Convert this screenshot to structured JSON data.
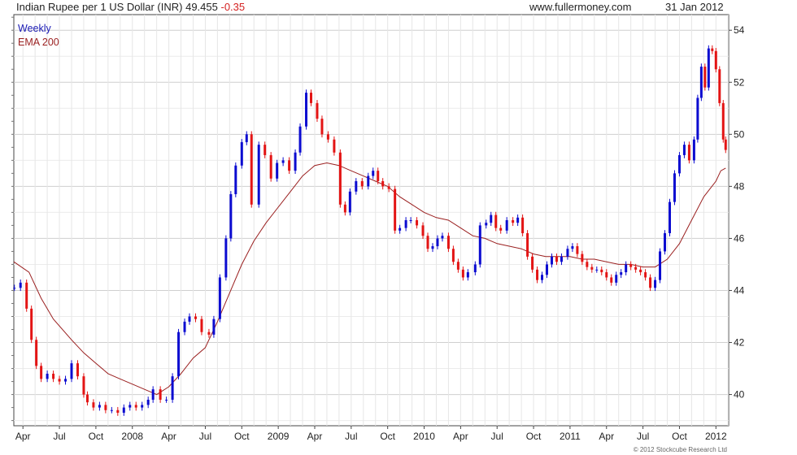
{
  "header": {
    "title": "Indian Rupee per 1 US Dollar (INR) 49.455",
    "change": "-0.35",
    "website": "www.fullermoney.com",
    "date": "31 Jan 2012"
  },
  "credit": "© 2012 Stockcube Research Ltd",
  "chart_data": {
    "type": "line",
    "legend": [
      {
        "label": "Weekly",
        "color": "#1a1ab4"
      },
      {
        "label": "EMA 200",
        "color": "#9a1f1f"
      }
    ],
    "colors": {
      "up": "#0b0bd0",
      "down": "#e31414",
      "ema": "#9a1f1f",
      "grid": "#dcdcdc",
      "frame": "#444444"
    },
    "ylim": [
      38.8,
      54.6
    ],
    "y_ticks": [
      40,
      42,
      44,
      46,
      48,
      50,
      52,
      54
    ],
    "x_ticks": [
      {
        "t": 0,
        "label": "Apr"
      },
      {
        "t": 3,
        "label": "Jul"
      },
      {
        "t": 6,
        "label": "Oct"
      },
      {
        "t": 9,
        "label": "2008"
      },
      {
        "t": 12,
        "label": "Apr"
      },
      {
        "t": 15,
        "label": "Jul"
      },
      {
        "t": 18,
        "label": "Oct"
      },
      {
        "t": 21,
        "label": "2009"
      },
      {
        "t": 24,
        "label": "Apr"
      },
      {
        "t": 27,
        "label": "Jul"
      },
      {
        "t": 30,
        "label": "Oct"
      },
      {
        "t": 33,
        "label": "2010"
      },
      {
        "t": 36,
        "label": "Apr"
      },
      {
        "t": 39,
        "label": "Jul"
      },
      {
        "t": 42,
        "label": "Oct"
      },
      {
        "t": 45,
        "label": "2011"
      },
      {
        "t": 48,
        "label": "Apr"
      },
      {
        "t": 51,
        "label": "Jul"
      },
      {
        "t": 54,
        "label": "Oct"
      },
      {
        "t": 57,
        "label": "2012"
      }
    ],
    "x_range": [
      -0.75,
      58.05
    ],
    "weekly_close": [
      [
        -0.7,
        44.1
      ],
      [
        -0.2,
        44.3
      ],
      [
        0.3,
        43.3
      ],
      [
        0.7,
        42.1
      ],
      [
        1.1,
        41.1
      ],
      [
        1.5,
        40.6
      ],
      [
        2.0,
        40.8
      ],
      [
        2.5,
        40.6
      ],
      [
        3.0,
        40.5
      ],
      [
        3.5,
        40.6
      ],
      [
        4.0,
        41.2
      ],
      [
        4.5,
        40.7
      ],
      [
        5.0,
        40.0
      ],
      [
        5.3,
        39.7
      ],
      [
        5.8,
        39.5
      ],
      [
        6.3,
        39.6
      ],
      [
        6.8,
        39.4
      ],
      [
        7.3,
        39.4
      ],
      [
        7.8,
        39.3
      ],
      [
        8.3,
        39.5
      ],
      [
        8.8,
        39.6
      ],
      [
        9.3,
        39.5
      ],
      [
        9.8,
        39.6
      ],
      [
        10.3,
        39.8
      ],
      [
        10.7,
        40.2
      ],
      [
        11.3,
        39.8
      ],
      [
        11.8,
        39.8
      ],
      [
        12.3,
        40.7
      ],
      [
        12.8,
        42.4
      ],
      [
        13.3,
        42.8
      ],
      [
        13.7,
        43.0
      ],
      [
        14.2,
        42.9
      ],
      [
        14.7,
        42.4
      ],
      [
        15.3,
        42.3
      ],
      [
        15.7,
        42.9
      ],
      [
        16.2,
        44.5
      ],
      [
        16.7,
        46.0
      ],
      [
        17.1,
        47.7
      ],
      [
        17.5,
        48.8
      ],
      [
        18.0,
        49.7
      ],
      [
        18.4,
        50.0
      ],
      [
        18.8,
        47.3
      ],
      [
        19.4,
        49.6
      ],
      [
        19.9,
        49.2
      ],
      [
        20.4,
        48.3
      ],
      [
        20.9,
        48.9
      ],
      [
        21.4,
        49.0
      ],
      [
        21.9,
        48.6
      ],
      [
        22.4,
        49.3
      ],
      [
        22.8,
        50.3
      ],
      [
        23.3,
        51.6
      ],
      [
        23.7,
        51.2
      ],
      [
        24.2,
        50.6
      ],
      [
        24.6,
        50.0
      ],
      [
        25.1,
        49.8
      ],
      [
        25.6,
        49.3
      ],
      [
        26.1,
        47.3
      ],
      [
        26.5,
        47.0
      ],
      [
        26.9,
        47.8
      ],
      [
        27.4,
        48.2
      ],
      [
        27.9,
        48.0
      ],
      [
        28.4,
        48.4
      ],
      [
        28.8,
        48.6
      ],
      [
        29.2,
        48.2
      ],
      [
        29.6,
        48.0
      ],
      [
        30.1,
        47.9
      ],
      [
        30.6,
        46.3
      ],
      [
        31.0,
        46.4
      ],
      [
        31.5,
        46.7
      ],
      [
        31.9,
        46.7
      ],
      [
        32.4,
        46.5
      ],
      [
        32.9,
        46.1
      ],
      [
        33.3,
        45.6
      ],
      [
        33.7,
        45.7
      ],
      [
        34.1,
        46.0
      ],
      [
        34.5,
        46.1
      ],
      [
        35.0,
        45.6
      ],
      [
        35.4,
        45.1
      ],
      [
        35.8,
        44.8
      ],
      [
        36.2,
        44.5
      ],
      [
        36.6,
        44.7
      ],
      [
        37.2,
        45.0
      ],
      [
        37.6,
        46.5
      ],
      [
        38.1,
        46.6
      ],
      [
        38.5,
        46.9
      ],
      [
        38.9,
        46.4
      ],
      [
        39.3,
        46.3
      ],
      [
        39.8,
        46.7
      ],
      [
        40.3,
        46.6
      ],
      [
        40.7,
        46.8
      ],
      [
        41.1,
        46.2
      ],
      [
        41.5,
        45.3
      ],
      [
        41.9,
        44.8
      ],
      [
        42.3,
        44.4
      ],
      [
        42.7,
        44.6
      ],
      [
        43.1,
        45.0
      ],
      [
        43.5,
        45.3
      ],
      [
        43.9,
        45.1
      ],
      [
        44.3,
        45.3
      ],
      [
        44.8,
        45.6
      ],
      [
        45.2,
        45.7
      ],
      [
        45.6,
        45.4
      ],
      [
        46.0,
        45.1
      ],
      [
        46.4,
        44.9
      ],
      [
        46.8,
        44.8
      ],
      [
        47.2,
        44.8
      ],
      [
        47.6,
        44.7
      ],
      [
        48.0,
        44.5
      ],
      [
        48.4,
        44.3
      ],
      [
        48.8,
        44.6
      ],
      [
        49.2,
        44.7
      ],
      [
        49.6,
        45.0
      ],
      [
        50.0,
        44.9
      ],
      [
        50.4,
        44.8
      ],
      [
        50.8,
        44.7
      ],
      [
        51.2,
        44.5
      ],
      [
        51.6,
        44.1
      ],
      [
        52.0,
        44.4
      ],
      [
        52.4,
        45.5
      ],
      [
        52.8,
        46.2
      ],
      [
        53.2,
        47.4
      ],
      [
        53.6,
        48.5
      ],
      [
        54.0,
        49.2
      ],
      [
        54.4,
        49.6
      ],
      [
        54.8,
        49.0
      ],
      [
        55.2,
        49.8
      ],
      [
        55.5,
        51.4
      ],
      [
        55.8,
        52.6
      ],
      [
        56.1,
        51.8
      ],
      [
        56.4,
        53.3
      ],
      [
        56.7,
        53.2
      ],
      [
        57.0,
        52.5
      ],
      [
        57.3,
        51.2
      ],
      [
        57.6,
        49.8
      ],
      [
        57.8,
        49.4
      ]
    ],
    "ema_200": [
      [
        -0.75,
        45.1
      ],
      [
        0.5,
        44.7
      ],
      [
        1.5,
        43.7
      ],
      [
        2.5,
        42.9
      ],
      [
        4.0,
        42.1
      ],
      [
        5.0,
        41.6
      ],
      [
        6.0,
        41.2
      ],
      [
        7.0,
        40.8
      ],
      [
        8.0,
        40.6
      ],
      [
        9.0,
        40.4
      ],
      [
        10.0,
        40.2
      ],
      [
        11.0,
        40.0
      ],
      [
        12.0,
        40.3
      ],
      [
        13.0,
        40.8
      ],
      [
        14.0,
        41.4
      ],
      [
        15.0,
        41.8
      ],
      [
        16.0,
        42.8
      ],
      [
        17.0,
        43.9
      ],
      [
        18.0,
        45.0
      ],
      [
        19.0,
        45.9
      ],
      [
        20.0,
        46.6
      ],
      [
        21.0,
        47.2
      ],
      [
        22.0,
        47.8
      ],
      [
        23.0,
        48.4
      ],
      [
        24.0,
        48.8
      ],
      [
        25.0,
        48.9
      ],
      [
        26.0,
        48.8
      ],
      [
        27.0,
        48.6
      ],
      [
        28.0,
        48.4
      ],
      [
        29.0,
        48.2
      ],
      [
        30.0,
        48.0
      ],
      [
        31.0,
        47.6
      ],
      [
        32.0,
        47.3
      ],
      [
        33.0,
        47.0
      ],
      [
        34.0,
        46.8
      ],
      [
        35.0,
        46.7
      ],
      [
        36.0,
        46.4
      ],
      [
        37.0,
        46.1
      ],
      [
        38.0,
        46.0
      ],
      [
        39.0,
        45.8
      ],
      [
        40.0,
        45.7
      ],
      [
        41.0,
        45.6
      ],
      [
        42.0,
        45.4
      ],
      [
        43.0,
        45.3
      ],
      [
        44.0,
        45.3
      ],
      [
        45.0,
        45.3
      ],
      [
        46.0,
        45.2
      ],
      [
        47.0,
        45.2
      ],
      [
        48.0,
        45.1
      ],
      [
        49.0,
        45.0
      ],
      [
        50.0,
        45.0
      ],
      [
        51.0,
        44.9
      ],
      [
        52.0,
        44.9
      ],
      [
        53.0,
        45.2
      ],
      [
        54.0,
        45.8
      ],
      [
        55.0,
        46.7
      ],
      [
        56.0,
        47.6
      ],
      [
        57.0,
        48.2
      ],
      [
        57.4,
        48.6
      ],
      [
        57.8,
        48.7
      ]
    ]
  }
}
